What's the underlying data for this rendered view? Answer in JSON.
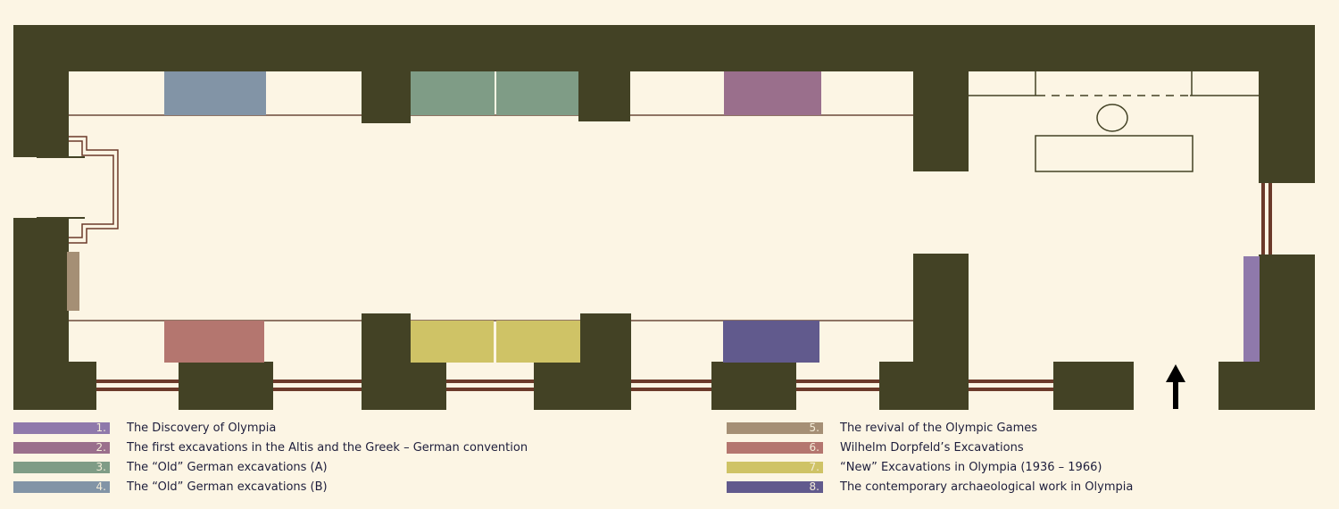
{
  "legend": [
    {
      "number": "1.",
      "label": "The Discovery of Olympia",
      "color": "#8f79ab"
    },
    {
      "number": "2.",
      "label": "The first excavations in the Altis and the Greek – German convention",
      "color": "#9a6f8c"
    },
    {
      "number": "3.",
      "label": "The “Old” German excavations (A)",
      "color": "#7f9c86"
    },
    {
      "number": "4.",
      "label": "The “Old” German excavations (B)",
      "color": "#8294a6"
    },
    {
      "number": "5.",
      "label": "The revival of the Olympic Games",
      "color": "#a58f75"
    },
    {
      "number": "6.",
      "label": "Wilhelm Dorpfeld’s Excavations",
      "color": "#b4766f"
    },
    {
      "number": "7.",
      "label": "“New” Excavations in Olympia (1936 – 1966)",
      "color": "#cfc366"
    },
    {
      "number": "8.",
      "label": "The contemporary archaeological work in Olympia",
      "color": "#615a8d"
    }
  ],
  "colors": {
    "wall": "#434225",
    "floor": "#fcf5e4",
    "outline": "#6b4a3a",
    "entrance_arrow": "#000000"
  },
  "icons": {
    "entrance": "arrow-up-icon"
  }
}
